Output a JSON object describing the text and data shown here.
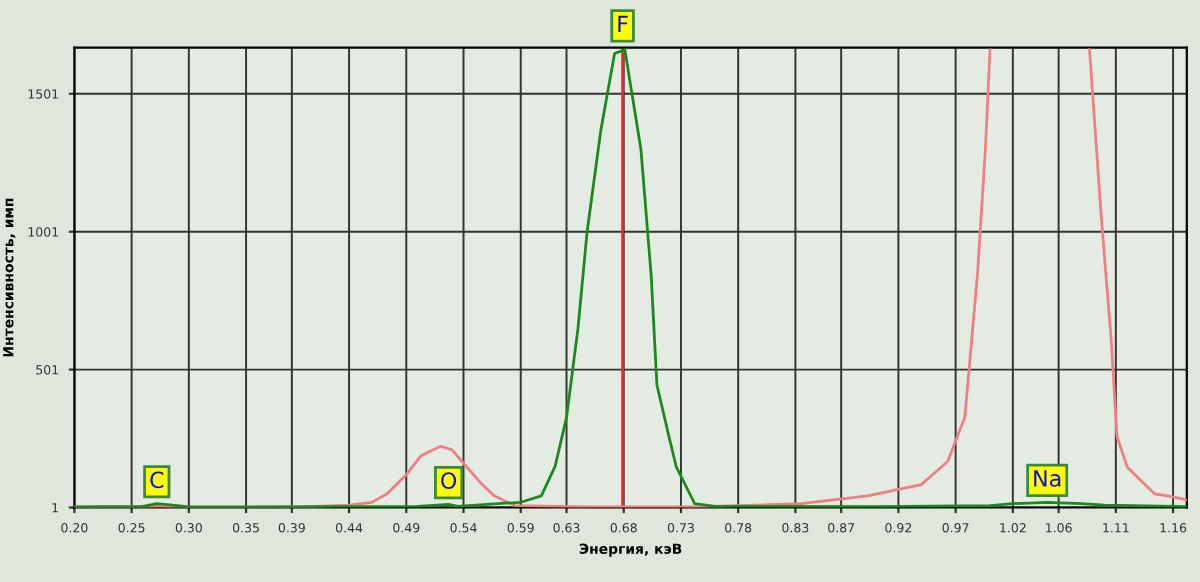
{
  "chart_data": {
    "type": "line",
    "xlabel": "Энергия, кэВ",
    "ylabel": "Интенсивность, имп",
    "xlim": [
      0.2,
      1.172
    ],
    "ylim": [
      1,
      1668
    ],
    "xticks": [
      {
        "value": 0.2,
        "label": "0.20"
      },
      {
        "value": 0.25,
        "label": "0.25"
      },
      {
        "value": 0.3,
        "label": "0.30"
      },
      {
        "value": 0.35,
        "label": "0.35"
      },
      {
        "value": 0.39,
        "label": "0.39"
      },
      {
        "value": 0.44,
        "label": "0.44"
      },
      {
        "value": 0.49,
        "label": "0.49"
      },
      {
        "value": 0.54,
        "label": "0.54"
      },
      {
        "value": 0.59,
        "label": "0.59"
      },
      {
        "value": 0.63,
        "label": "0.63"
      },
      {
        "value": 0.68,
        "label": "0.68"
      },
      {
        "value": 0.73,
        "label": "0.73"
      },
      {
        "value": 0.78,
        "label": "0.78"
      },
      {
        "value": 0.83,
        "label": "0.83"
      },
      {
        "value": 0.87,
        "label": "0.87"
      },
      {
        "value": 0.92,
        "label": "0.92"
      },
      {
        "value": 0.97,
        "label": "0.97"
      },
      {
        "value": 1.02,
        "label": "1.02"
      },
      {
        "value": 1.06,
        "label": "1.06"
      },
      {
        "value": 1.11,
        "label": "1.11"
      },
      {
        "value": 1.16,
        "label": "1.16"
      }
    ],
    "yticks": [
      1,
      501,
      1001,
      1501
    ],
    "grid": true,
    "marker": "none",
    "line_style": "solid",
    "ref_lines": [
      {
        "axis": "x",
        "value": 0.679,
        "color": "#ff2020"
      }
    ],
    "annotations": [
      {
        "text": "C",
        "x": 0.272,
        "y": 15
      },
      {
        "text": "O",
        "x": 0.527,
        "y": 12
      },
      {
        "text": "F",
        "x": 0.679,
        "y": 1668
      },
      {
        "text": "Na",
        "x": 1.05,
        "y": 20
      }
    ],
    "series": [
      {
        "color": "#f08080",
        "x": [
          0.2,
          0.25,
          0.27,
          0.3,
          0.4,
          0.44,
          0.46,
          0.473,
          0.49,
          0.503,
          0.52,
          0.53,
          0.543,
          0.555,
          0.567,
          0.585,
          0.65,
          0.75,
          0.835,
          0.893,
          0.94,
          0.963,
          0.978,
          0.989,
          0.996,
          1.0,
          1.04,
          1.087,
          1.097,
          1.106,
          1.111,
          1.12,
          1.144,
          1.155,
          1.172
        ],
        "values": [
          2,
          2,
          6,
          2,
          3,
          10,
          20,
          50,
          120,
          189,
          223,
          210,
          147,
          90,
          43,
          8,
          3,
          4,
          15,
          43,
          84,
          168,
          327,
          841,
          1300,
          1660,
          null,
          1661,
          1070,
          605,
          258,
          147,
          50,
          43,
          29
        ]
      },
      {
        "color": "#1a8a1a",
        "x": [
          0.2,
          0.26,
          0.272,
          0.29,
          0.3,
          0.5,
          0.527,
          0.535,
          0.57,
          0.59,
          0.608,
          0.62,
          0.63,
          0.64,
          0.648,
          0.66,
          0.672,
          0.681,
          0.695,
          0.704,
          0.709,
          0.72,
          0.726,
          0.742,
          0.76,
          0.9,
          1.0,
          1.02,
          1.05,
          1.08,
          1.1,
          1.172
        ],
        "values": [
          3,
          5,
          15,
          8,
          3,
          5,
          12,
          5,
          15,
          20,
          43,
          150,
          327,
          650,
          1001,
          1369,
          1647,
          1661,
          1300,
          841,
          445,
          250,
          147,
          15,
          5,
          4,
          8,
          15,
          20,
          15,
          10,
          4
        ]
      }
    ]
  }
}
